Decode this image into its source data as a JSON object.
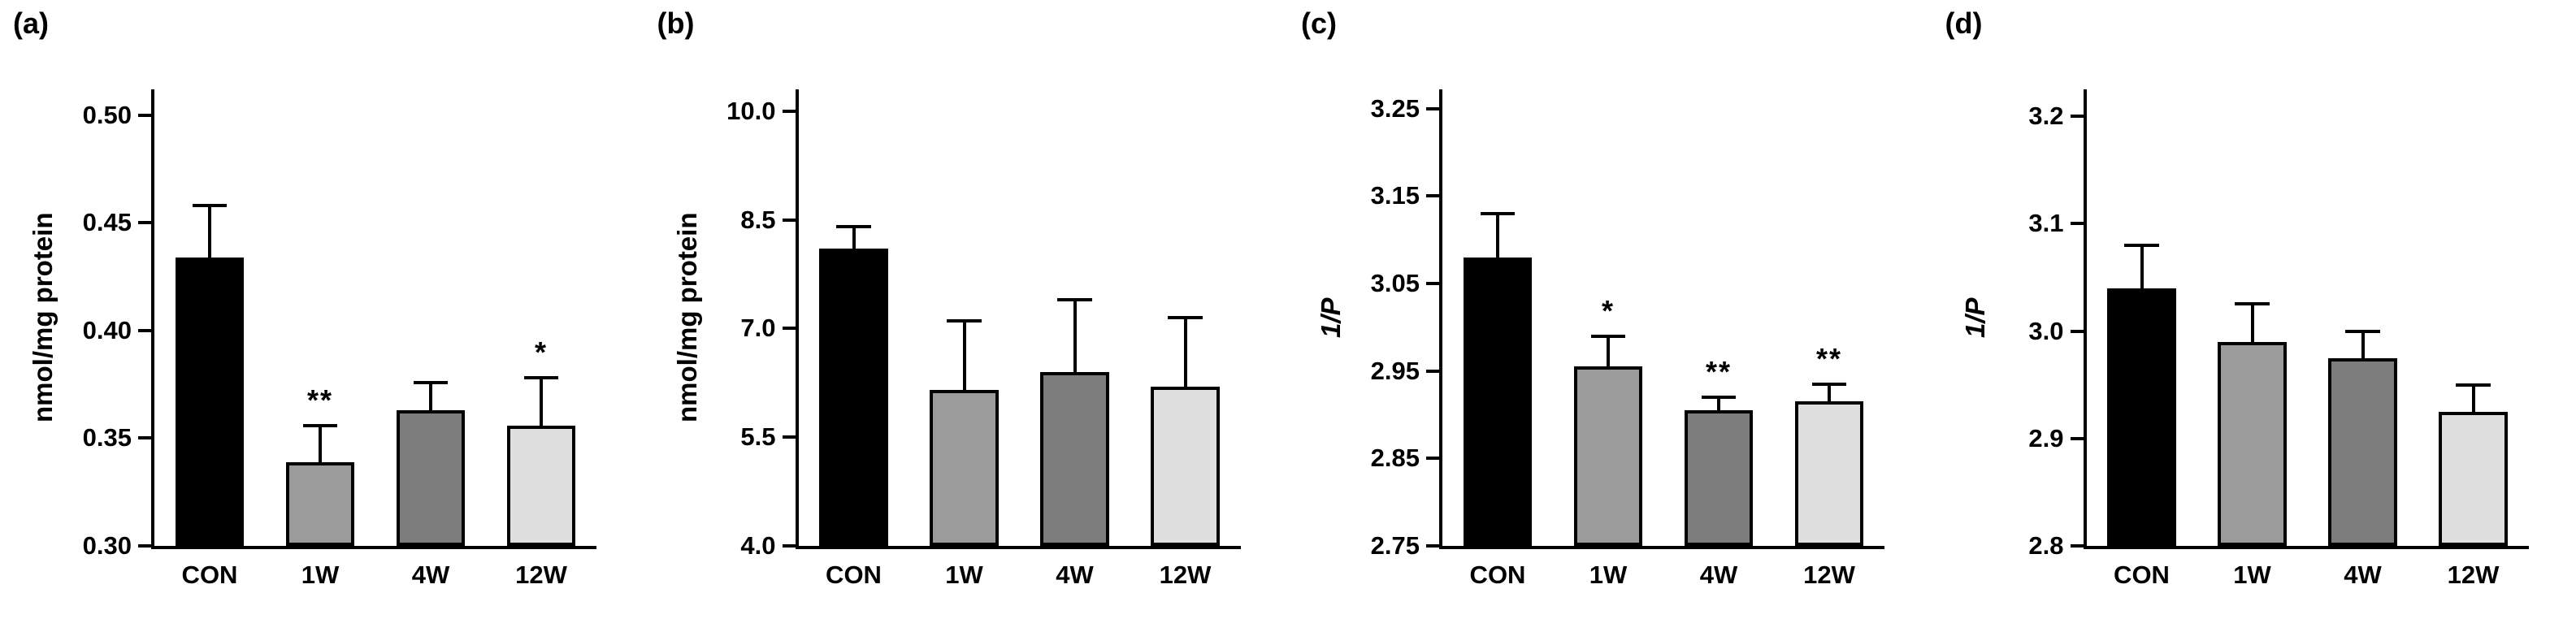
{
  "figure": {
    "background": "#ffffff",
    "axis_color": "#000000"
  },
  "chart_data": [
    {
      "type": "bar",
      "panel_label": "(a)",
      "ylabel": "nmol/mg protein",
      "ylabel_style": "normal",
      "categories": [
        "CON",
        "1W",
        "4W",
        "12W"
      ],
      "values": [
        0.434,
        0.339,
        0.363,
        0.356
      ],
      "errors_up": [
        0.024,
        0.017,
        0.013,
        0.022
      ],
      "significance": [
        "",
        "**",
        "",
        "*"
      ],
      "ylim": [
        0.3,
        0.512
      ],
      "yticks": [
        0.3,
        0.35,
        0.4,
        0.45,
        0.5
      ],
      "ytick_labels": [
        "0.30",
        "0.35",
        "0.40",
        "0.45",
        "0.50"
      ],
      "bar_colors": [
        "#000000",
        "#9b9b9b",
        "#7d7d7d",
        "#dedede"
      ],
      "grid": false,
      "legend": "none"
    },
    {
      "type": "bar",
      "panel_label": "(b)",
      "ylabel": "nmol/mg protein",
      "ylabel_style": "normal",
      "categories": [
        "CON",
        "1W",
        "4W",
        "12W"
      ],
      "values": [
        8.1,
        6.15,
        6.4,
        6.2
      ],
      "errors_up": [
        0.3,
        0.95,
        1.0,
        0.95
      ],
      "significance": [
        "",
        "",
        "",
        ""
      ],
      "ylim": [
        4.0,
        10.3
      ],
      "yticks": [
        4.0,
        5.5,
        7.0,
        8.5,
        10.0
      ],
      "ytick_labels": [
        "4.0",
        "5.5",
        "7.0",
        "8.5",
        "10.0"
      ],
      "bar_colors": [
        "#000000",
        "#9b9b9b",
        "#7d7d7d",
        "#dedede"
      ],
      "grid": false,
      "legend": "none"
    },
    {
      "type": "bar",
      "panel_label": "(c)",
      "ylabel": "1/P",
      "ylabel_style": "italic",
      "categories": [
        "CON",
        "1W",
        "4W",
        "12W"
      ],
      "values": [
        3.08,
        2.955,
        2.905,
        2.915
      ],
      "errors_up": [
        0.05,
        0.035,
        0.015,
        0.02
      ],
      "significance": [
        "",
        "*",
        "**",
        "**"
      ],
      "ylim": [
        2.75,
        3.272
      ],
      "yticks": [
        2.75,
        2.85,
        2.95,
        3.05,
        3.15,
        3.25
      ],
      "ytick_labels": [
        "2.75",
        "2.85",
        "2.95",
        "3.05",
        "3.15",
        "3.25"
      ],
      "bar_colors": [
        "#000000",
        "#9b9b9b",
        "#7d7d7d",
        "#dedede"
      ],
      "grid": false,
      "legend": "none"
    },
    {
      "type": "bar",
      "panel_label": "(d)",
      "ylabel": "1/P",
      "ylabel_style": "italic",
      "categories": [
        "CON",
        "1W",
        "4W",
        "12W"
      ],
      "values": [
        3.04,
        2.99,
        2.975,
        2.925
      ],
      "errors_up": [
        0.04,
        0.035,
        0.025,
        0.025
      ],
      "significance": [
        "",
        "",
        "",
        ""
      ],
      "ylim": [
        2.8,
        3.225
      ],
      "yticks": [
        2.8,
        2.9,
        3.0,
        3.1,
        3.2
      ],
      "ytick_labels": [
        "2.8",
        "2.9",
        "3.0",
        "3.1",
        "3.2"
      ],
      "bar_colors": [
        "#000000",
        "#9b9b9b",
        "#7d7d7d",
        "#dedede"
      ],
      "grid": false,
      "legend": "none"
    }
  ]
}
